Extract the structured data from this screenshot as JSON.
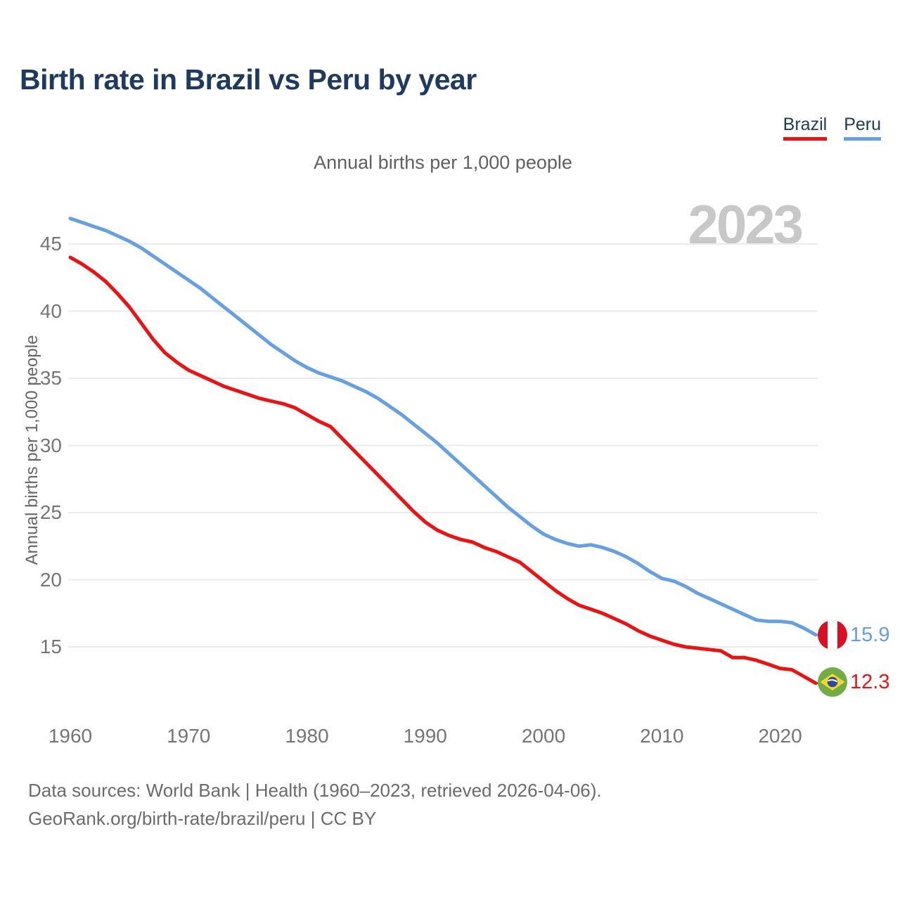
{
  "page": {
    "title": "Birth rate in Brazil vs Peru by year"
  },
  "legend": {
    "items": [
      {
        "label": "Brazil",
        "color": "#ee1111"
      },
      {
        "label": "Peru",
        "color": "#64a0e2"
      }
    ]
  },
  "chart_data": {
    "type": "line",
    "title": "Birth rate in Brazil vs Peru by year",
    "subtitle": "Annual births per 1,000 people",
    "ylabel": "Annual births per 1,000 people",
    "watermark": "2023",
    "grid": "horizontal",
    "legend_position": "top-right",
    "x_ticks": [
      1960,
      1970,
      1980,
      1990,
      2000,
      2010,
      2020
    ],
    "y_ticks": [
      15,
      20,
      25,
      30,
      35,
      40,
      45
    ],
    "ylim": [
      11.5,
      47.5
    ],
    "xlim": [
      1960,
      2023
    ],
    "x": [
      1960,
      1961,
      1962,
      1963,
      1964,
      1965,
      1966,
      1967,
      1968,
      1969,
      1970,
      1971,
      1972,
      1973,
      1974,
      1975,
      1976,
      1977,
      1978,
      1979,
      1980,
      1981,
      1982,
      1983,
      1984,
      1985,
      1986,
      1987,
      1988,
      1989,
      1990,
      1991,
      1992,
      1993,
      1994,
      1995,
      1996,
      1997,
      1998,
      1999,
      2000,
      2001,
      2002,
      2003,
      2004,
      2005,
      2006,
      2007,
      2008,
      2009,
      2010,
      2011,
      2012,
      2013,
      2014,
      2015,
      2016,
      2017,
      2018,
      2019,
      2020,
      2021,
      2022,
      2023
    ],
    "series": [
      {
        "name": "Brazil",
        "color": "#ee1111",
        "values": [
          44.0,
          43.5,
          42.9,
          42.2,
          41.3,
          40.3,
          39.1,
          37.9,
          36.9,
          36.2,
          35.6,
          35.2,
          34.8,
          34.4,
          34.1,
          33.8,
          33.5,
          33.3,
          33.1,
          32.8,
          32.3,
          31.8,
          31.4,
          30.5,
          29.6,
          28.7,
          27.8,
          26.9,
          26.0,
          25.1,
          24.3,
          23.7,
          23.3,
          23.0,
          22.8,
          22.4,
          22.1,
          21.7,
          21.3,
          20.6,
          19.9,
          19.2,
          18.6,
          18.1,
          17.8,
          17.5,
          17.1,
          16.7,
          16.2,
          15.8,
          15.5,
          15.2,
          15.0,
          14.9,
          14.8,
          14.7,
          14.2,
          14.2,
          14.0,
          13.7,
          13.4,
          13.3,
          12.8,
          12.3
        ]
      },
      {
        "name": "Peru",
        "color": "#64a0e2",
        "values": [
          46.9,
          46.6,
          46.3,
          46.0,
          45.6,
          45.2,
          44.7,
          44.1,
          43.5,
          42.9,
          42.3,
          41.7,
          41.0,
          40.3,
          39.6,
          38.9,
          38.2,
          37.5,
          36.9,
          36.3,
          35.8,
          35.4,
          35.1,
          34.8,
          34.4,
          34.0,
          33.5,
          32.9,
          32.3,
          31.6,
          30.9,
          30.2,
          29.4,
          28.6,
          27.8,
          27.0,
          26.2,
          25.4,
          24.7,
          24.0,
          23.4,
          23.0,
          22.7,
          22.5,
          22.6,
          22.4,
          22.1,
          21.7,
          21.2,
          20.6,
          20.1,
          19.9,
          19.5,
          19.0,
          18.6,
          18.2,
          17.8,
          17.4,
          17.0,
          16.9,
          16.9,
          16.8,
          16.4,
          15.9
        ]
      }
    ],
    "end_labels": [
      {
        "series": "Peru",
        "value": "15.9",
        "flag": "peru-flag-icon"
      },
      {
        "series": "Brazil",
        "value": "12.3",
        "flag": "brazil-flag-icon"
      }
    ]
  },
  "colors": {
    "brazil": "#ee1111",
    "peru": "#64a0e2",
    "title": "#1e3a5f",
    "grid": "#ebebeb",
    "tick_text": "#757575",
    "watermark": "#c8c8c8",
    "peru_flag_red": "#d91023",
    "brazil_flag_green": "#71ad44",
    "brazil_flag_yellow": "#f7d62e",
    "brazil_flag_blue": "#2f4a9b"
  },
  "footer": {
    "line1": "Data sources: World Bank | Health (1960–2023, retrieved 2026-04-06).",
    "line2": "GeoRank.org/birth-rate/brazil/peru | CC BY"
  }
}
